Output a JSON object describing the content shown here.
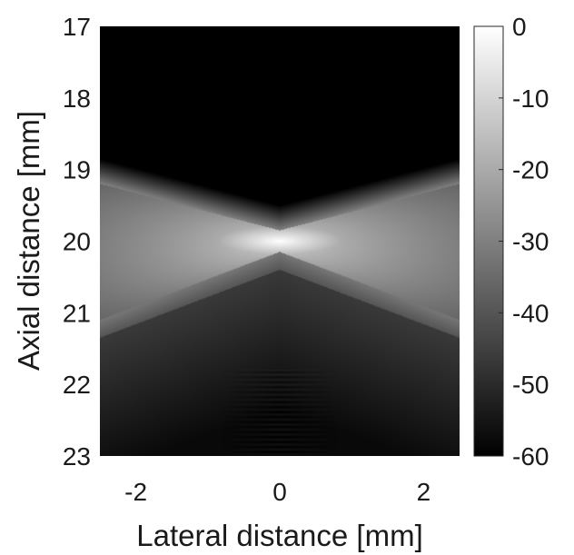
{
  "chart_data": {
    "type": "heatmap",
    "xlabel": "Lateral distance [mm]",
    "ylabel": "Axial distance [mm]",
    "xlim": [
      -2.5,
      2.5
    ],
    "ylim": [
      23,
      17
    ],
    "y_reversed": true,
    "xticks": [
      -2,
      0,
      2
    ],
    "xtick_labels": [
      "-2",
      "0",
      "2"
    ],
    "yticks": [
      17,
      18,
      19,
      20,
      21,
      22,
      23
    ],
    "ytick_labels": [
      "17",
      "18",
      "19",
      "20",
      "21",
      "22",
      "23"
    ],
    "colormap": "gray",
    "color_range": [
      -60,
      0
    ],
    "colorbar_ticks": [
      0,
      -10,
      -20,
      -30,
      -40,
      -50,
      -60
    ],
    "colorbar_tick_labels": [
      "0",
      "-10",
      "-20",
      "-30",
      "-40",
      "-50",
      "-60"
    ],
    "focus": {
      "x": 0,
      "y": 20,
      "peak_db": 0
    },
    "field_description_db": {
      "upper_edge_at_focus_axis": 19.85,
      "upper_edge_at_x_edges": 19.2,
      "lower_edge_at_focus_axis": 20.15,
      "lower_edge_at_x_edges": 21.1,
      "beam_level_near_focus": -8,
      "beam_level_at_edges": -30,
      "above_beam_level": -60,
      "below_beam_level_near": -45,
      "below_beam_level_far": -58
    }
  }
}
